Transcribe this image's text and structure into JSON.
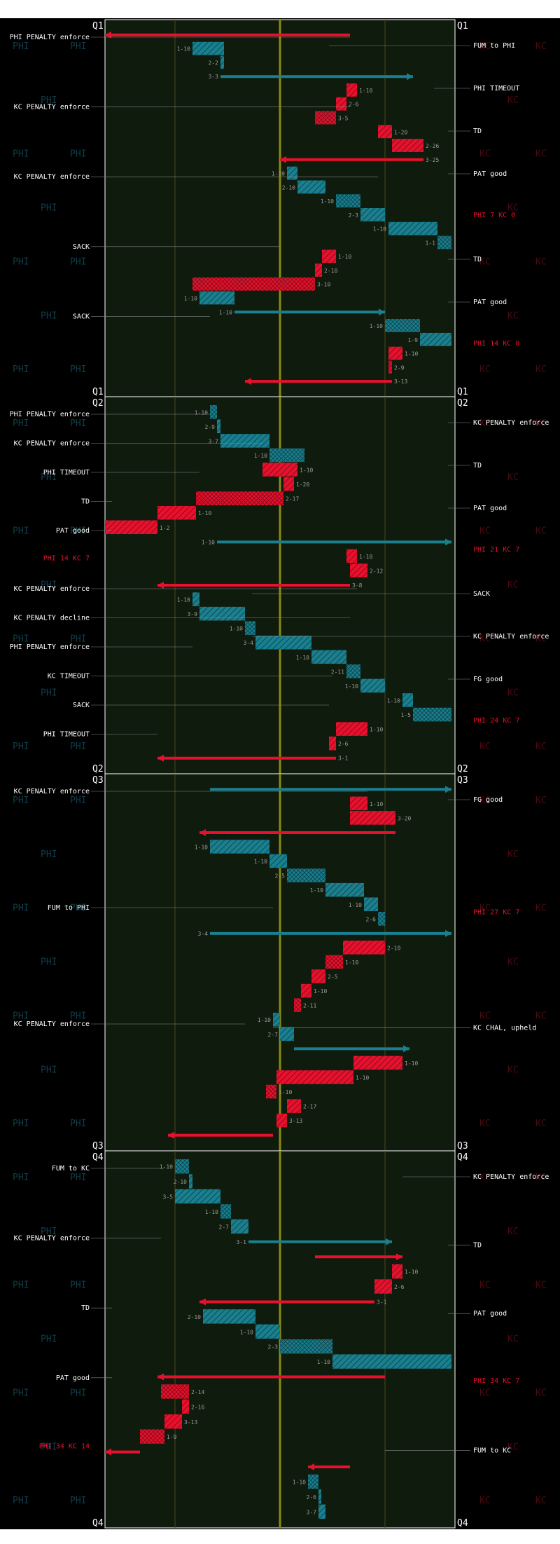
{
  "teams": {
    "left": "PHI",
    "right": "KC"
  },
  "colors": {
    "phi": "#1a7f8e",
    "phi_light": "#2bb0c2",
    "kc": "#e8112d",
    "kc_dark": "#8b0a1b",
    "field": "#0f1b0d",
    "background": "#000000",
    "grid": "#4a4a1a",
    "midline": "#8a8a10",
    "label": "#ffffff",
    "score": "#e8112d",
    "yard_label": "#9a9a9a"
  },
  "chart_data": {
    "type": "drive-chart",
    "quarters": [
      {
        "label": "Q1",
        "left_events": [
          {
            "text": "PHI PENALTY enforce",
            "yard": 70
          },
          {
            "text": "KC PENALTY enforce",
            "yard": 70
          },
          {
            "text": "KC PENALTY enforce",
            "yard": 78
          },
          {
            "text": "SACK",
            "yard": 50
          },
          {
            "text": "SACK",
            "yard": 30
          }
        ],
        "right_events": [
          {
            "text": "FUM to PHI",
            "yard": 64
          },
          {
            "text": "PHI TIMEOUT",
            "yard": 94
          },
          {
            "text": "TD",
            "yard": 98
          },
          {
            "text": "PAT good",
            "yard": 98
          },
          {
            "score": "PHI 7 KC 0"
          },
          {
            "text": "TD",
            "yard": 98
          },
          {
            "text": "PAT good",
            "yard": 98
          },
          {
            "score": "PHI 14 KC 0"
          }
        ],
        "plays": [
          {
            "team": "KC",
            "start": 70,
            "end": 0,
            "down": ""
          },
          {
            "team": "PHI",
            "start": 25,
            "end": 34,
            "down": "1-10"
          },
          {
            "team": "PHI",
            "start": 34,
            "end": 33,
            "down": "2-2"
          },
          {
            "team": "PHI",
            "start": 33,
            "end": 88,
            "down": "3-3"
          },
          {
            "team": "KC",
            "start": 72,
            "end": 69,
            "down": "1-10"
          },
          {
            "team": "KC",
            "start": 69,
            "end": 66,
            "down": "2-6"
          },
          {
            "team": "KC",
            "start": 66,
            "end": 60,
            "down": "3-5"
          },
          {
            "team": "KC",
            "start": 78,
            "end": 82,
            "down": "1-20"
          },
          {
            "team": "KC",
            "start": 82,
            "end": 91,
            "down": "2-26"
          },
          {
            "team": "KC",
            "start": 91,
            "end": 50,
            "down": "3-25"
          },
          {
            "team": "PHI",
            "start": 52,
            "end": 55,
            "down": "1-10"
          },
          {
            "team": "PHI",
            "start": 55,
            "end": 63,
            "down": "2-10"
          },
          {
            "team": "PHI",
            "start": 66,
            "end": 73,
            "down": "1-10"
          },
          {
            "team": "PHI",
            "start": 73,
            "end": 80,
            "down": "2-3"
          },
          {
            "team": "PHI",
            "start": 81,
            "end": 95,
            "down": "1-10"
          },
          {
            "team": "PHI",
            "start": 95,
            "end": 99,
            "down": "1-1"
          },
          {
            "team": "KC",
            "start": 66,
            "end": 62,
            "down": "1-10"
          },
          {
            "team": "KC",
            "start": 62,
            "end": 60,
            "down": "2-10"
          },
          {
            "team": "KC",
            "start": 60,
            "end": 25,
            "down": "3-10"
          },
          {
            "team": "PHI",
            "start": 27,
            "end": 37,
            "down": "1-10"
          },
          {
            "team": "PHI",
            "start": 37,
            "end": 80,
            "down": "1-10"
          },
          {
            "team": "PHI",
            "start": 80,
            "end": 90,
            "down": "1-10"
          },
          {
            "team": "PHI",
            "start": 90,
            "end": 99,
            "down": "1-9"
          },
          {
            "team": "KC",
            "start": 85,
            "end": 81,
            "down": "1-10"
          },
          {
            "team": "KC",
            "start": 81,
            "end": 82,
            "down": "2-9"
          },
          {
            "team": "KC",
            "start": 82,
            "end": 40,
            "down": "3-13"
          }
        ]
      },
      {
        "label": "Q2",
        "left_events": [
          {
            "text": "PHI PENALTY enforce",
            "yard": 30
          },
          {
            "text": "KC PENALTY enforce",
            "yard": 45
          },
          {
            "text": "PHI TIMEOUT",
            "yard": 27
          },
          {
            "text": "TD",
            "yard": 2
          },
          {
            "text": "PAT good",
            "yard": 2
          },
          {
            "score": "PHI 14 KC 7"
          },
          {
            "text": "KC PENALTY enforce",
            "yard": 72
          },
          {
            "text": "KC PENALTY decline",
            "yard": 70
          },
          {
            "text": "PHI PENALTY enforce",
            "yard": 25
          },
          {
            "text": "KC TIMEOUT",
            "yard": 65
          },
          {
            "text": "SACK",
            "yard": 64
          },
          {
            "text": "PHI TIMEOUT",
            "yard": 15
          }
        ],
        "right_events": [
          {
            "text": "KC PENALTY enforce",
            "yard": 98
          },
          {
            "text": "TD",
            "yard": 98
          },
          {
            "text": "PAT good",
            "yard": 98
          },
          {
            "score": "PHI 21 KC 7"
          },
          {
            "text": "SACK",
            "yard": 42
          },
          {
            "text": "KC PENALTY enforce",
            "yard": 42
          },
          {
            "text": "FG good",
            "yard": 98
          },
          {
            "score": "PHI 24 KC 7"
          }
        ],
        "plays": [
          {
            "team": "PHI",
            "start": 30,
            "end": 32,
            "down": "1-10"
          },
          {
            "team": "PHI",
            "start": 32,
            "end": 33,
            "down": "2-9"
          },
          {
            "team": "PHI",
            "start": 33,
            "end": 47,
            "down": "3-7"
          },
          {
            "team": "PHI",
            "start": 47,
            "end": 57,
            "down": "1-10"
          },
          {
            "team": "KC",
            "start": 45,
            "end": 55,
            "down": "1-10"
          },
          {
            "team": "KC",
            "start": 54,
            "end": 51,
            "down": "1-20"
          },
          {
            "team": "KC",
            "start": 51,
            "end": 26,
            "down": "2-17"
          },
          {
            "team": "KC",
            "start": 26,
            "end": 15,
            "down": "1-10"
          },
          {
            "team": "KC",
            "start": 15,
            "end": 0,
            "down": "1-2"
          },
          {
            "team": "PHI",
            "start": 32,
            "end": 99,
            "down": "1-10"
          },
          {
            "team": "KC",
            "start": 72,
            "end": 69,
            "down": "1-10"
          },
          {
            "team": "KC",
            "start": 70,
            "end": 75,
            "down": "2-12"
          },
          {
            "team": "KC",
            "start": 70,
            "end": 15,
            "down": "3-8"
          },
          {
            "team": "PHI",
            "start": 25,
            "end": 27,
            "down": "1-10"
          },
          {
            "team": "PHI",
            "start": 27,
            "end": 40,
            "down": "3-9"
          },
          {
            "team": "PHI",
            "start": 40,
            "end": 43,
            "down": "1-10"
          },
          {
            "team": "PHI",
            "start": 43,
            "end": 59,
            "down": "3-4"
          },
          {
            "team": "PHI",
            "start": 59,
            "end": 69,
            "down": "1-10"
          },
          {
            "team": "PHI",
            "start": 69,
            "end": 73,
            "down": "2-11"
          },
          {
            "team": "PHI",
            "start": 73,
            "end": 80,
            "down": "1-10"
          },
          {
            "team": "PHI",
            "start": 85,
            "end": 88,
            "down": "1-10"
          },
          {
            "team": "PHI",
            "start": 88,
            "end": 99,
            "down": "1-5"
          },
          {
            "team": "KC",
            "start": 75,
            "end": 66,
            "down": "1-10"
          },
          {
            "team": "KC",
            "start": 66,
            "end": 64,
            "down": "2-6"
          },
          {
            "team": "KC",
            "start": 66,
            "end": 15,
            "down": "3-1"
          }
        ]
      },
      {
        "label": "Q3",
        "left_events": [
          {
            "text": "KC PENALTY enforce",
            "yard": 75
          },
          {
            "text": "FUM to PHI",
            "yard": 48
          },
          {
            "text": "KC PENALTY enforce",
            "yard": 40
          }
        ],
        "right_events": [
          {
            "text": "FG good",
            "yard": 98
          },
          {
            "score": "PHI 27 KC 7"
          },
          {
            "text": "KC CHAL, upheld",
            "yard": 48
          }
        ],
        "plays": [
          {
            "team": "PHI",
            "start": 30,
            "end": 99,
            "down": ""
          },
          {
            "team": "KC",
            "start": 75,
            "end": 70,
            "down": "1-10"
          },
          {
            "team": "KC",
            "start": 70,
            "end": 83,
            "down": "3-20"
          },
          {
            "team": "KC",
            "start": 83,
            "end": 27,
            "down": ""
          },
          {
            "team": "PHI",
            "start": 30,
            "end": 47,
            "down": "1-10"
          },
          {
            "team": "PHI",
            "start": 47,
            "end": 52,
            "down": "1-10"
          },
          {
            "team": "PHI",
            "start": 52,
            "end": 63,
            "down": "2-5"
          },
          {
            "team": "PHI",
            "start": 63,
            "end": 74,
            "down": "1-10"
          },
          {
            "team": "PHI",
            "start": 74,
            "end": 78,
            "down": "1-10"
          },
          {
            "team": "PHI",
            "start": 78,
            "end": 80,
            "down": "2-6"
          },
          {
            "team": "PHI",
            "start": 30,
            "end": 99,
            "down": "3-4"
          },
          {
            "team": "KC",
            "start": 80,
            "end": 68,
            "down": "2-10"
          },
          {
            "team": "KC",
            "start": 68,
            "end": 63,
            "down": "1-10"
          },
          {
            "team": "KC",
            "start": 63,
            "end": 59,
            "down": "2-5"
          },
          {
            "team": "KC",
            "start": 59,
            "end": 56,
            "down": "1-10"
          },
          {
            "team": "KC",
            "start": 56,
            "end": 54,
            "down": "2-11"
          },
          {
            "team": "PHI",
            "start": 48,
            "end": 50,
            "down": "1-10"
          },
          {
            "team": "PHI",
            "start": 50,
            "end": 54,
            "down": "2-7"
          },
          {
            "team": "PHI",
            "start": 54,
            "end": 87,
            "down": ""
          },
          {
            "team": "KC",
            "start": 85,
            "end": 71,
            "down": "1-10"
          },
          {
            "team": "KC",
            "start": 71,
            "end": 49,
            "down": "1-10"
          },
          {
            "team": "KC",
            "start": 49,
            "end": 46,
            "down": "1-10"
          },
          {
            "team": "KC",
            "start": 52,
            "end": 56,
            "down": "2-17"
          },
          {
            "team": "KC",
            "start": 49,
            "end": 52,
            "down": "3-13"
          },
          {
            "team": "KC",
            "start": 48,
            "end": 18,
            "down": ""
          }
        ]
      },
      {
        "label": "Q4",
        "left_events": [
          {
            "text": "FUM to KC",
            "yard": 17
          },
          {
            "text": "KC PENALTY enforce",
            "yard": 16
          },
          {
            "text": "TD",
            "yard": 2
          },
          {
            "text": "PAT good",
            "yard": 2
          },
          {
            "score": "PHI 34 KC 14"
          }
        ],
        "right_events": [
          {
            "text": "KC PENALTY enforce",
            "yard": 85
          },
          {
            "text": "TD",
            "yard": 98
          },
          {
            "text": "PAT good",
            "yard": 98
          },
          {
            "score": "PHI 34 KC 7"
          },
          {
            "text": "FUM to KC",
            "yard": 80
          }
        ],
        "plays": [
          {
            "team": "PHI",
            "start": 20,
            "end": 24,
            "down": "1-10"
          },
          {
            "team": "PHI",
            "start": 24,
            "end": 25,
            "down": "2-10"
          },
          {
            "team": "PHI",
            "start": 20,
            "end": 33,
            "down": "3-5"
          },
          {
            "team": "PHI",
            "start": 33,
            "end": 36,
            "down": "1-10"
          },
          {
            "team": "PHI",
            "start": 36,
            "end": 41,
            "down": "2-7"
          },
          {
            "team": "PHI",
            "start": 41,
            "end": 82,
            "down": "3-1"
          },
          {
            "team": "KC",
            "start": 60,
            "end": 85,
            "down": ""
          },
          {
            "team": "KC",
            "start": 85,
            "end": 82,
            "down": "1-10"
          },
          {
            "team": "KC",
            "start": 82,
            "end": 77,
            "down": "2-6"
          },
          {
            "team": "KC",
            "start": 77,
            "end": 27,
            "down": "3-1"
          },
          {
            "team": "PHI",
            "start": 28,
            "end": 43,
            "down": "2-10"
          },
          {
            "team": "PHI",
            "start": 43,
            "end": 50,
            "down": "1-10"
          },
          {
            "team": "PHI",
            "start": 50,
            "end": 65,
            "down": "2-3"
          },
          {
            "team": "PHI",
            "start": 65,
            "end": 99,
            "down": "1-10"
          },
          {
            "team": "KC",
            "start": 80,
            "end": 15,
            "down": ""
          },
          {
            "team": "KC",
            "start": 16,
            "end": 24,
            "down": "2-14"
          },
          {
            "team": "KC",
            "start": 24,
            "end": 22,
            "down": "2-16"
          },
          {
            "team": "KC",
            "start": 22,
            "end": 17,
            "down": "3-13"
          },
          {
            "team": "KC",
            "start": 17,
            "end": 10,
            "down": "1-9"
          },
          {
            "team": "KC",
            "start": 10,
            "end": 0,
            "down": ""
          },
          {
            "team": "KC",
            "start": 70,
            "end": 58,
            "down": ""
          },
          {
            "team": "PHI",
            "start": 58,
            "end": 61,
            "down": "1-10"
          },
          {
            "team": "PHI",
            "start": 61,
            "end": 61,
            "down": "2-6"
          },
          {
            "team": "PHI",
            "start": 61,
            "end": 63,
            "down": "3-7"
          }
        ]
      }
    ]
  }
}
